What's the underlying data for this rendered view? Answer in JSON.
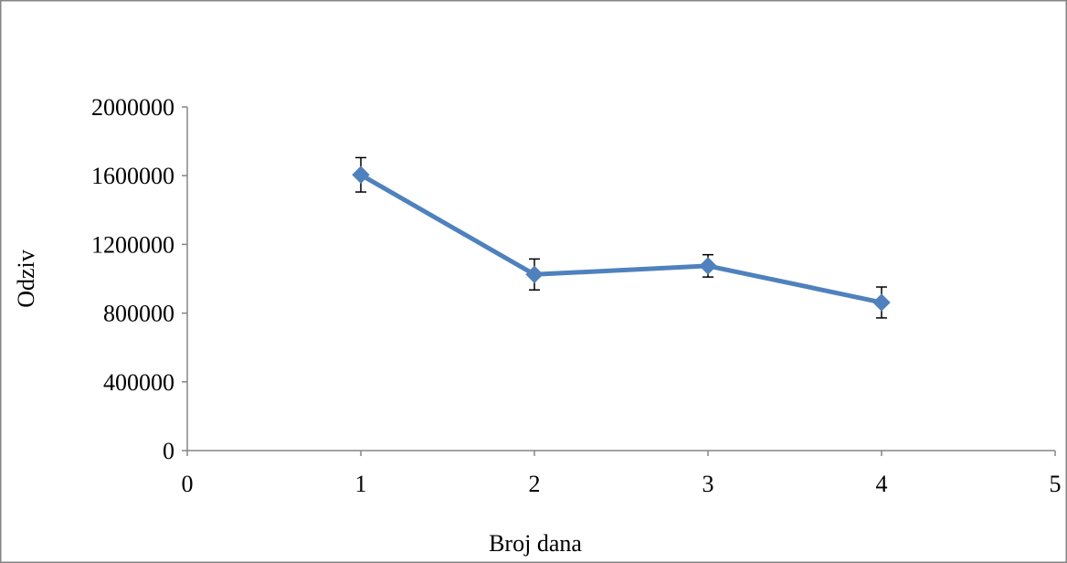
{
  "chart_data": {
    "type": "line",
    "title": "",
    "xlabel": "Broj dana",
    "ylabel": "Odziv",
    "xlim": [
      0,
      5
    ],
    "ylim": [
      0,
      2000000
    ],
    "x_ticks": [
      "0",
      "1",
      "2",
      "3",
      "4",
      "5"
    ],
    "y_ticks": [
      "0",
      "400000",
      "800000",
      "1200000",
      "1600000",
      "2000000"
    ],
    "grid": false,
    "legend": "none",
    "series": [
      {
        "x": [
          1,
          2,
          3,
          4
        ],
        "y": [
          1605000,
          1025000,
          1075000,
          862000
        ],
        "error": [
          100000,
          90000,
          65000,
          90000
        ],
        "color": "#4F81BD",
        "marker": "diamond"
      }
    ],
    "axis_color": "#858585",
    "frame_color": "#858585"
  }
}
